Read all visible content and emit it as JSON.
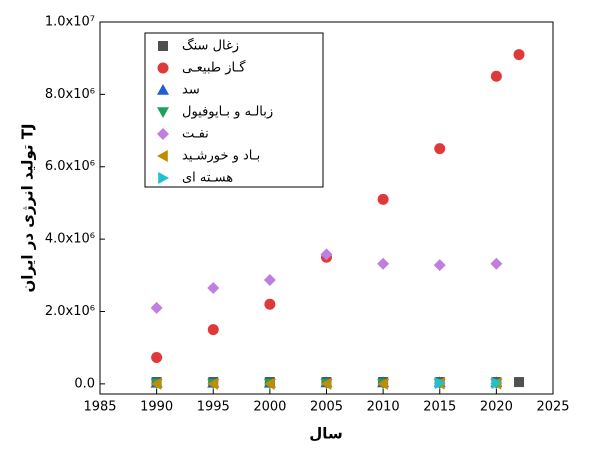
{
  "chart_data": {
    "type": "scatter",
    "y_label": "تولید انرژی در ایران TJ",
    "x_label": "سال",
    "xlim": [
      1985,
      2025
    ],
    "xticks": [
      1985,
      1990,
      1995,
      2000,
      2005,
      2010,
      2015,
      2020,
      2025
    ],
    "ylim": [
      -280000,
      10000000
    ],
    "yticks": [
      {
        "value": 0,
        "label": "0.0"
      },
      {
        "value": 2000000,
        "label": "2.0x10⁶"
      },
      {
        "value": 4000000,
        "label": "4.0x10⁶"
      },
      {
        "value": 6000000,
        "label": "6.0x10⁶"
      },
      {
        "value": 8000000,
        "label": "8.0x10⁶"
      },
      {
        "value": 10000000,
        "label": "1.0x10⁷"
      }
    ],
    "legend": "upper-left",
    "series": [
      {
        "name": "زغال سنگ",
        "color": "#505050",
        "marker": "square",
        "x": [
          1990,
          1995,
          2000,
          2005,
          2010,
          2015,
          2020,
          2022
        ],
        "values": [
          50000,
          50000,
          50000,
          50000,
          50000,
          50000,
          50000,
          50000
        ]
      },
      {
        "name": "گـاز طبیعـی",
        "color": "#e0393a",
        "marker": "circle",
        "x": [
          1990,
          1995,
          2000,
          2005,
          2010,
          2015,
          2020,
          2022
        ],
        "values": [
          730000,
          1500000,
          2200000,
          3500000,
          5100000,
          6500000,
          8500000,
          9100000
        ]
      },
      {
        "name": "سد",
        "color": "#1f5fd0",
        "marker": "triangle-up",
        "x": [
          1990,
          1995,
          2000,
          2005,
          2010,
          2015,
          2020
        ],
        "values": [
          30000,
          30000,
          30000,
          40000,
          40000,
          40000,
          40000
        ]
      },
      {
        "name": "زبالـه و بـایوفیول",
        "color": "#1fa060",
        "marker": "triangle-down",
        "x": [
          1990,
          1995,
          2000,
          2005,
          2010,
          2015,
          2020
        ],
        "values": [
          10000,
          10000,
          10000,
          10000,
          10000,
          10000,
          10000
        ]
      },
      {
        "name": "نفـت",
        "color": "#c07ee0",
        "marker": "diamond",
        "x": [
          1990,
          1995,
          2000,
          2005,
          2010,
          2015,
          2020
        ],
        "values": [
          2100000,
          2650000,
          2870000,
          3580000,
          3320000,
          3280000,
          3320000
        ]
      },
      {
        "name": "بـاد و خورشـید",
        "color": "#c08c00",
        "marker": "triangle-left",
        "x": [
          1990,
          1995,
          2000,
          2005,
          2010,
          2015,
          2020
        ],
        "values": [
          0,
          0,
          0,
          0,
          0,
          10000,
          10000
        ]
      },
      {
        "name": "هسـته ای",
        "color": "#1fc0d0",
        "marker": "triangle-right",
        "x": [
          2015,
          2020
        ],
        "values": [
          20000,
          20000
        ]
      }
    ]
  }
}
